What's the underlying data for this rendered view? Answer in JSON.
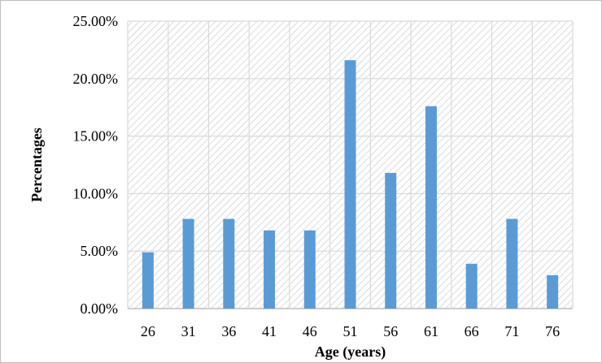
{
  "chart_data": {
    "type": "bar",
    "title": "",
    "xlabel": "Age (years)",
    "ylabel": "Percentages",
    "categories": [
      "26",
      "31",
      "36",
      "41",
      "46",
      "51",
      "56",
      "61",
      "66",
      "71",
      "76"
    ],
    "values": [
      4.9,
      7.8,
      7.8,
      6.8,
      6.8,
      21.6,
      11.8,
      17.6,
      3.9,
      7.8,
      2.9
    ],
    "ylim": [
      0,
      25
    ],
    "y_tick_values": [
      0,
      5,
      10,
      15,
      20,
      25
    ],
    "y_tick_labels": [
      "0.00%",
      "5.00%",
      "10.00%",
      "15.00%",
      "20.00%",
      "25.00%"
    ],
    "grid": true,
    "plot_background": "diagonal hatch",
    "legend": "none",
    "colors": {
      "bar": "#5b9bd5",
      "grid": "#d9d9d9",
      "hatch": "#d0d0d0",
      "frame": "#bfbfbf"
    }
  }
}
